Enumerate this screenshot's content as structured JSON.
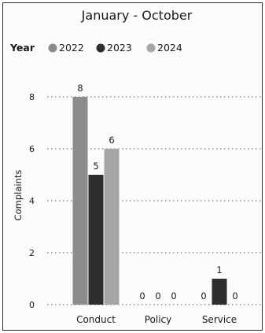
{
  "chart_data": {
    "type": "bar",
    "title": "January - October",
    "legend_title": "Year",
    "legend_position": "top-left",
    "ylabel": "Complaints",
    "xlabel": "",
    "ylim": [
      0,
      8
    ],
    "yticks": [
      0,
      2,
      4,
      6,
      8
    ],
    "grid": true,
    "categories": [
      "Conduct",
      "Policy",
      "Service"
    ],
    "series": [
      {
        "name": "2022",
        "values": [
          8,
          0,
          0
        ],
        "color": "#8c8c8c"
      },
      {
        "name": "2023",
        "values": [
          5,
          0,
          1
        ],
        "color": "#2e2e2e"
      },
      {
        "name": "2024",
        "values": [
          6,
          0,
          0
        ],
        "color": "#a6a6a6"
      }
    ]
  }
}
